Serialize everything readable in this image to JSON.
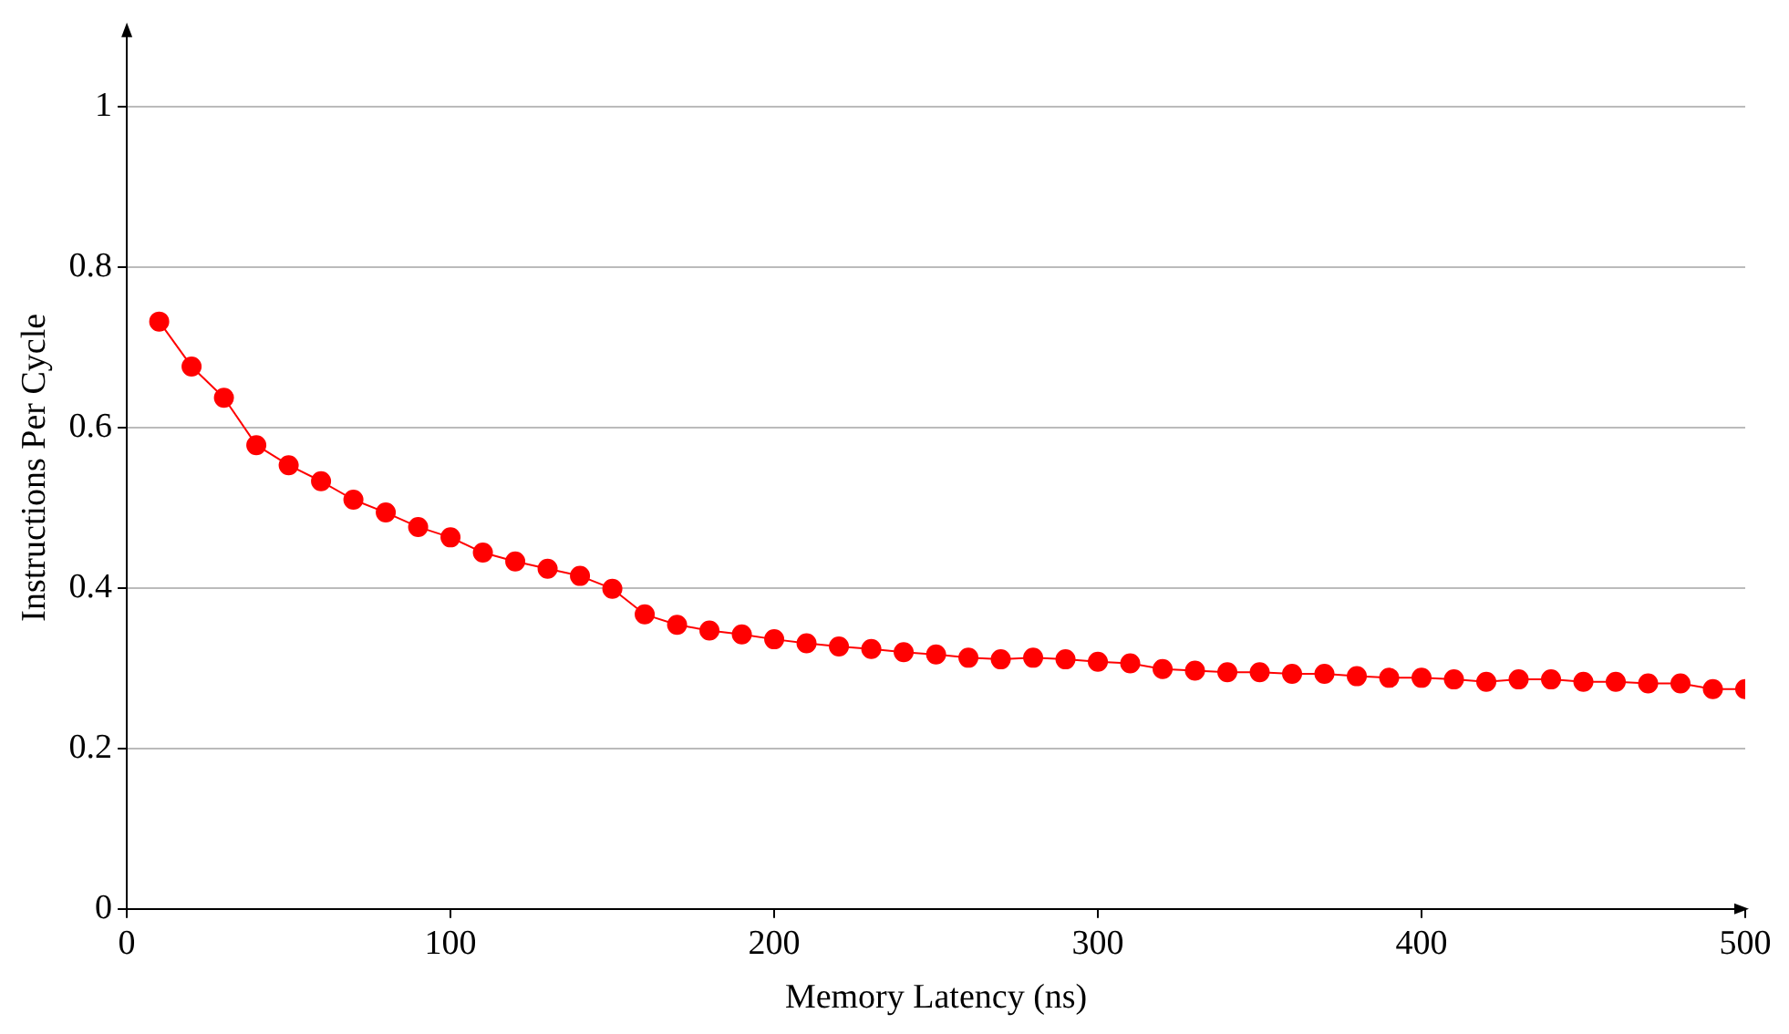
{
  "chart_data": {
    "type": "line",
    "xlabel": "Memory Latency (ns)",
    "ylabel": "Instructions Per Cycle",
    "x": [
      10,
      20,
      30,
      40,
      50,
      60,
      70,
      80,
      90,
      100,
      110,
      120,
      130,
      140,
      150,
      160,
      170,
      180,
      190,
      200,
      210,
      220,
      230,
      240,
      250,
      260,
      270,
      280,
      290,
      300,
      310,
      320,
      330,
      340,
      350,
      360,
      370,
      380,
      390,
      400,
      410,
      420,
      430,
      440,
      450,
      460,
      470,
      480,
      490,
      500
    ],
    "series": [
      {
        "color": "#ff0000",
        "values": [
          0.732,
          0.676,
          0.637,
          0.578,
          0.553,
          0.533,
          0.51,
          0.494,
          0.476,
          0.463,
          0.444,
          0.433,
          0.424,
          0.415,
          0.399,
          0.367,
          0.354,
          0.347,
          0.342,
          0.336,
          0.331,
          0.327,
          0.324,
          0.32,
          0.317,
          0.313,
          0.311,
          0.313,
          0.311,
          0.308,
          0.306,
          0.299,
          0.297,
          0.295,
          0.295,
          0.293,
          0.293,
          0.29,
          0.288,
          0.288,
          0.286,
          0.283,
          0.286,
          0.286,
          0.283,
          0.283,
          0.281,
          0.281,
          0.274,
          0.274
        ]
      }
    ],
    "xlim": [
      0,
      500
    ],
    "xticks": [
      0,
      100,
      200,
      300,
      400,
      500
    ],
    "ylim": [
      0,
      1.1
    ],
    "yticks": [
      0,
      0.2,
      0.4,
      0.6,
      0.8,
      1
    ],
    "grid": "y",
    "marker": "circle",
    "line_style": "solid",
    "legend": false
  }
}
